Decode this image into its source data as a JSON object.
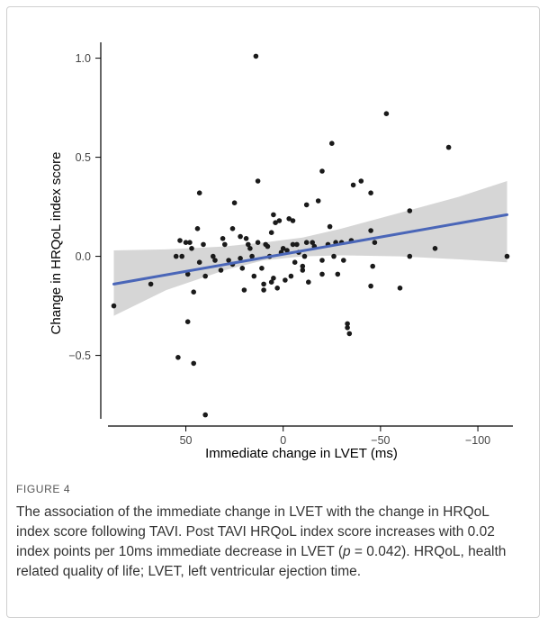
{
  "figure": {
    "label": "FIGURE 4",
    "caption_pre": "The association of the immediate change in LVET with the change in HRQoL index score following TAVI. Post TAVI HRQoL index score increases with 0.02 index points per 10ms immediate decrease in LVET (",
    "caption_p": "p",
    "caption_mid": " = 0.042). HRQoL, health related quality of life; LVET, left ventricular ejection time."
  },
  "colors": {
    "point": "#1a1a1a",
    "line": "#4a66b8",
    "ribbon": "#cfcfcf",
    "axis": "#000000"
  },
  "chart_data": {
    "type": "scatter",
    "xlabel": "Immediate change in LVET (ms)",
    "ylabel": "Change in HRQoL index score",
    "x_reversed": true,
    "xlim": [
      90,
      -118
    ],
    "ylim": [
      -0.82,
      1.08
    ],
    "xticks": [
      50,
      0,
      -50,
      -100
    ],
    "xtick_labels": [
      "50",
      "0",
      "−50",
      "−100"
    ],
    "yticks": [
      -0.5,
      0.0,
      0.5,
      1.0
    ],
    "ytick_labels": [
      "−0.5",
      "0.0",
      "0.5",
      "1.0"
    ],
    "grid": false,
    "regression": {
      "x_start": 87,
      "x_end": -115,
      "y_start": -0.14,
      "y_end": 0.21
    },
    "ribbon": [
      {
        "x": 87,
        "lo": -0.3,
        "hi": 0.03
      },
      {
        "x": 60,
        "lo": -0.17,
        "hi": 0.035
      },
      {
        "x": 30,
        "lo": -0.07,
        "hi": 0.05
      },
      {
        "x": 10,
        "lo": -0.02,
        "hi": 0.07
      },
      {
        "x": -10,
        "lo": 0.0,
        "hi": 0.095
      },
      {
        "x": -30,
        "lo": 0.005,
        "hi": 0.14
      },
      {
        "x": -60,
        "lo": 0.0,
        "hi": 0.22
      },
      {
        "x": -90,
        "lo": -0.015,
        "hi": 0.3
      },
      {
        "x": -115,
        "lo": -0.03,
        "hi": 0.38
      }
    ],
    "points": [
      [
        87,
        -0.25
      ],
      [
        -115,
        0.0
      ],
      [
        -85,
        0.55
      ],
      [
        -78,
        0.04
      ],
      [
        -65,
        0.23
      ],
      [
        -65,
        0.0
      ],
      [
        -60,
        -0.16
      ],
      [
        -53,
        0.72
      ],
      [
        -47,
        0.07
      ],
      [
        -46,
        -0.05
      ],
      [
        -45,
        0.32
      ],
      [
        -45,
        0.13
      ],
      [
        -45,
        -0.15
      ],
      [
        -40,
        0.38
      ],
      [
        -36,
        0.36
      ],
      [
        -35,
        0.08
      ],
      [
        -34,
        -0.39
      ],
      [
        -33,
        -0.36
      ],
      [
        -33,
        -0.34
      ],
      [
        -31,
        -0.02
      ],
      [
        -30,
        0.07
      ],
      [
        -28,
        -0.09
      ],
      [
        -27,
        0.07
      ],
      [
        -26,
        0.0
      ],
      [
        -25,
        0.57
      ],
      [
        -24,
        0.15
      ],
      [
        -23,
        0.06
      ],
      [
        -20,
        0.43
      ],
      [
        -20,
        -0.02
      ],
      [
        -20,
        -0.09
      ],
      [
        -18,
        0.28
      ],
      [
        -16,
        0.05
      ],
      [
        -15,
        0.07
      ],
      [
        -13,
        -0.13
      ],
      [
        -12,
        0.26
      ],
      [
        -11,
        0.0
      ],
      [
        -10,
        -0.07
      ],
      [
        -10,
        -0.05
      ],
      [
        -8,
        0.02
      ],
      [
        -7,
        0.06
      ],
      [
        -6,
        -0.03
      ],
      [
        -5,
        0.06
      ],
      [
        -4,
        -0.1
      ],
      [
        -3,
        0.19
      ],
      [
        -2,
        0.03
      ],
      [
        -1,
        -0.12
      ],
      [
        0,
        0.04
      ],
      [
        1,
        0.02
      ],
      [
        2,
        0.18
      ],
      [
        3,
        -0.16
      ],
      [
        4,
        0.17
      ],
      [
        5,
        0.21
      ],
      [
        5,
        -0.11
      ],
      [
        6,
        -0.13
      ],
      [
        7,
        0.0
      ],
      [
        8,
        0.05
      ],
      [
        9,
        0.06
      ],
      [
        10,
        -0.14
      ],
      [
        10,
        -0.17
      ],
      [
        11,
        -0.06
      ],
      [
        13,
        0.38
      ],
      [
        13,
        0.07
      ],
      [
        14,
        1.01
      ],
      [
        16,
        0.0
      ],
      [
        17,
        0.04
      ],
      [
        18,
        0.06
      ],
      [
        19,
        0.09
      ],
      [
        20,
        -0.17
      ],
      [
        21,
        -0.06
      ],
      [
        22,
        -0.01
      ],
      [
        25,
        0.27
      ],
      [
        26,
        0.14
      ],
      [
        26,
        -0.04
      ],
      [
        28,
        -0.02
      ],
      [
        30,
        0.06
      ],
      [
        31,
        0.09
      ],
      [
        32,
        -0.07
      ],
      [
        35,
        -0.02
      ],
      [
        40,
        -0.1
      ],
      [
        40,
        -0.8
      ],
      [
        41,
        0.06
      ],
      [
        43,
        0.32
      ],
      [
        43,
        -0.03
      ],
      [
        44,
        0.14
      ],
      [
        46,
        -0.54
      ],
      [
        46,
        -0.18
      ],
      [
        47,
        0.04
      ],
      [
        50,
        0.07
      ],
      [
        54,
        -0.51
      ],
      [
        53,
        0.08
      ],
      [
        68,
        -0.14
      ],
      [
        52,
        0.0
      ],
      [
        36,
        0.0
      ],
      [
        22,
        0.1
      ],
      [
        15,
        -0.1
      ],
      [
        -5,
        0.18
      ],
      [
        48,
        0.07
      ],
      [
        55,
        0.0
      ],
      [
        49,
        -0.09
      ],
      [
        49,
        -0.33
      ],
      [
        -12,
        0.07
      ],
      [
        6,
        0.12
      ]
    ]
  }
}
